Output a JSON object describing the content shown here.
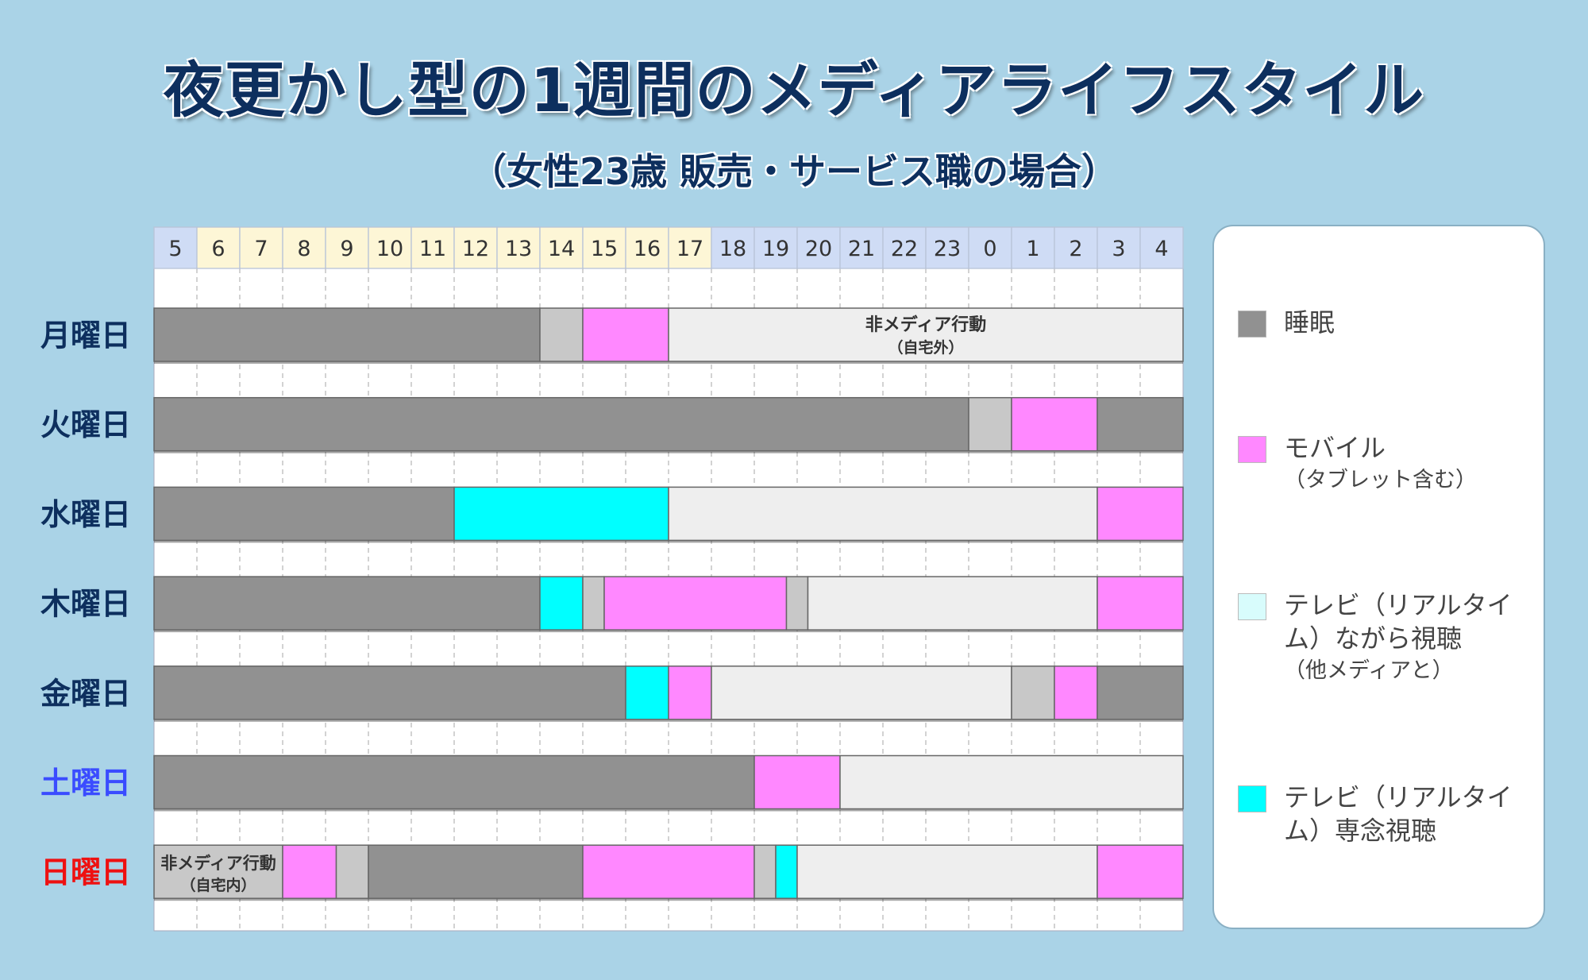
{
  "title": "夜更かし型の1週間のメディアライフスタイル",
  "subtitle": "（女性23歳 販売・サービス職の場合）",
  "colors": {
    "background": "#aad3e7",
    "title": "#0d2f5e",
    "header_night": "#cfdcf5",
    "header_day": "#fdf6d6",
    "sleep": "#919191",
    "mobile": "#ff88ff",
    "tv_while": "#d8fcfc",
    "tv_focus": "#00ffff",
    "nonmedia_home": "#c8c8c8",
    "nonmedia_out": "#eeeeee",
    "saturday": "#3a4cff",
    "sunday": "#ee1111",
    "weekday": "#0d2f5e"
  },
  "legend": [
    {
      "key": "sleep",
      "label": "睡眠",
      "sub": ""
    },
    {
      "key": "mobile",
      "label": "モバイル",
      "sub": "（タブレット含む）"
    },
    {
      "key": "tv_while",
      "label": "テレビ（リアルタイム）ながら視聴",
      "sub": "（他メディアと）"
    },
    {
      "key": "tv_focus",
      "label": "テレビ（リアルタイム）専念視聴",
      "sub": ""
    }
  ],
  "chart_data": {
    "type": "gantt",
    "title": "夜更かし型の1週間のメディアライフスタイル",
    "subtitle": "（女性23歳 販売・サービス職の場合）",
    "x_ticks": [
      "5",
      "6",
      "7",
      "8",
      "9",
      "10",
      "11",
      "12",
      "13",
      "14",
      "15",
      "16",
      "17",
      "18",
      "19",
      "20",
      "21",
      "22",
      "23",
      "0",
      "1",
      "2",
      "3",
      "4"
    ],
    "x_range_hours": [
      5,
      29
    ],
    "day_hours": [
      6,
      17
    ],
    "annotations": {
      "nonmedia_out": "非メディア行動（自宅外）",
      "nonmedia_home": "非メディア行動（自宅内）"
    },
    "days": [
      {
        "label": "月曜日",
        "color": "weekday",
        "segments": [
          {
            "start": 5,
            "end": 14,
            "type": "sleep"
          },
          {
            "start": 14,
            "end": 15,
            "type": "nonmedia_home"
          },
          {
            "start": 15,
            "end": 17,
            "type": "mobile"
          },
          {
            "start": 17,
            "end": 29,
            "type": "nonmedia_out",
            "label": "非メディア行動",
            "sublabel": "（自宅外）"
          }
        ]
      },
      {
        "label": "火曜日",
        "color": "weekday",
        "segments": [
          {
            "start": 5,
            "end": 24,
            "type": "sleep"
          },
          {
            "start": 24,
            "end": 25,
            "type": "nonmedia_home"
          },
          {
            "start": 25,
            "end": 27,
            "type": "mobile"
          },
          {
            "start": 27,
            "end": 29,
            "type": "sleep"
          }
        ]
      },
      {
        "label": "水曜日",
        "color": "weekday",
        "segments": [
          {
            "start": 5,
            "end": 12,
            "type": "sleep"
          },
          {
            "start": 12,
            "end": 17,
            "type": "tv_focus"
          },
          {
            "start": 17,
            "end": 27,
            "type": "nonmedia_out"
          },
          {
            "start": 27,
            "end": 29,
            "type": "mobile"
          }
        ]
      },
      {
        "label": "木曜日",
        "color": "weekday",
        "segments": [
          {
            "start": 5,
            "end": 14,
            "type": "sleep"
          },
          {
            "start": 14,
            "end": 15,
            "type": "tv_focus"
          },
          {
            "start": 15,
            "end": 15.5,
            "type": "nonmedia_home"
          },
          {
            "start": 15.5,
            "end": 19.75,
            "type": "mobile"
          },
          {
            "start": 19.75,
            "end": 20.25,
            "type": "nonmedia_home"
          },
          {
            "start": 20.25,
            "end": 27,
            "type": "nonmedia_out"
          },
          {
            "start": 27,
            "end": 29,
            "type": "mobile"
          }
        ]
      },
      {
        "label": "金曜日",
        "color": "weekday",
        "segments": [
          {
            "start": 5,
            "end": 16,
            "type": "sleep"
          },
          {
            "start": 16,
            "end": 17,
            "type": "tv_focus"
          },
          {
            "start": 17,
            "end": 18,
            "type": "mobile"
          },
          {
            "start": 18,
            "end": 25,
            "type": "nonmedia_out"
          },
          {
            "start": 25,
            "end": 26,
            "type": "nonmedia_home"
          },
          {
            "start": 26,
            "end": 27,
            "type": "mobile"
          },
          {
            "start": 27,
            "end": 29,
            "type": "sleep"
          }
        ]
      },
      {
        "label": "土曜日",
        "color": "saturday",
        "segments": [
          {
            "start": 5,
            "end": 19,
            "type": "sleep"
          },
          {
            "start": 19,
            "end": 21,
            "type": "mobile"
          },
          {
            "start": 21,
            "end": 29,
            "type": "nonmedia_out"
          }
        ]
      },
      {
        "label": "日曜日",
        "color": "sunday",
        "segments": [
          {
            "start": 5,
            "end": 8,
            "type": "nonmedia_home",
            "label": "非メディア行動",
            "sublabel": "（自宅内）"
          },
          {
            "start": 8,
            "end": 9.25,
            "type": "mobile"
          },
          {
            "start": 9.25,
            "end": 10,
            "type": "nonmedia_home"
          },
          {
            "start": 10,
            "end": 15,
            "type": "sleep"
          },
          {
            "start": 15,
            "end": 19,
            "type": "mobile"
          },
          {
            "start": 19,
            "end": 19.5,
            "type": "nonmedia_home"
          },
          {
            "start": 19.5,
            "end": 20,
            "type": "tv_focus"
          },
          {
            "start": 20,
            "end": 27,
            "type": "nonmedia_out"
          },
          {
            "start": 27,
            "end": 29,
            "type": "mobile"
          }
        ]
      }
    ]
  }
}
